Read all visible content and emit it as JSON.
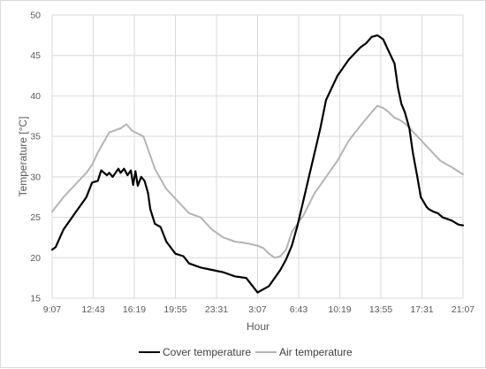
{
  "chart_data": {
    "type": "line",
    "xlabel": "Hour",
    "ylabel": "Temperature [°C]",
    "ylim": [
      15,
      50
    ],
    "yticks": [
      15,
      20,
      25,
      30,
      35,
      40,
      45,
      50
    ],
    "xlim": [
      0,
      36
    ],
    "x_tick_labels": [
      "9:07",
      "12:43",
      "16:19",
      "19:55",
      "23:31",
      "3:07",
      "6:43",
      "10:19",
      "13:55",
      "17:31",
      "21:07"
    ],
    "x_unit": "hours elapsed from 9:07",
    "grid": "vertical and horizontal",
    "legend_position": "bottom",
    "series": [
      {
        "name": "Cover temperature",
        "color": "#000000",
        "x": [
          0,
          0.3,
          1,
          2,
          3,
          3.5,
          4,
          4.3,
          4.8,
          5,
          5.3,
          5.8,
          6,
          6.3,
          6.6,
          6.9,
          7.1,
          7.3,
          7.5,
          7.8,
          8.1,
          8.4,
          8.6,
          9,
          9.5,
          10,
          10.8,
          11.5,
          12,
          13,
          14,
          15,
          16,
          17,
          18,
          19,
          19.5,
          20,
          20.5,
          21,
          21.5,
          22,
          22.5,
          23,
          23.5,
          24,
          25,
          26,
          27,
          27.5,
          28,
          28.5,
          29,
          29.5,
          30,
          30.3,
          30.6,
          30.9,
          31.3,
          31.6,
          32,
          32.3,
          32.8,
          33,
          33.4,
          33.8,
          34.2,
          35,
          35.6,
          36
        ],
        "y": [
          21,
          21.3,
          23.5,
          25.5,
          27.5,
          29.3,
          29.5,
          30.8,
          30.2,
          30.5,
          30,
          31,
          30.5,
          31,
          30.2,
          30.8,
          29,
          30.7,
          28.9,
          30,
          29.5,
          28,
          26,
          24.2,
          23.8,
          22,
          20.5,
          20.2,
          19.3,
          18.8,
          18.5,
          18.2,
          17.7,
          17.5,
          15.7,
          16.5,
          17.5,
          18.5,
          19.8,
          21.5,
          24,
          27,
          30,
          33,
          36,
          39.5,
          42.5,
          44.5,
          46,
          46.5,
          47.3,
          47.5,
          47,
          45.5,
          44,
          41,
          39,
          38,
          36,
          33,
          30,
          27.5,
          26.3,
          26,
          25.7,
          25.5,
          25,
          24.6,
          24.1,
          24
        ]
      },
      {
        "name": "Air temperature",
        "color": "#b4b4b4",
        "x": [
          0,
          1,
          2,
          3,
          3.5,
          4,
          5,
          6,
          6.5,
          7,
          8,
          9,
          10,
          11,
          12,
          13,
          14,
          15,
          16,
          17,
          18,
          18.5,
          19,
          19.5,
          20,
          20.5,
          21,
          22,
          23,
          24,
          25,
          26,
          27,
          28,
          28.5,
          29,
          29.5,
          30,
          30.5,
          31,
          32,
          33,
          34,
          35,
          36
        ],
        "y": [
          25.7,
          27.5,
          29,
          30.5,
          31.5,
          33,
          35.5,
          36,
          36.5,
          35.7,
          35,
          31,
          28.5,
          27,
          25.5,
          25,
          23.5,
          22.5,
          22,
          21.8,
          21.5,
          21.2,
          20.5,
          20,
          20.2,
          21,
          23.2,
          25.2,
          28,
          30,
          32,
          34.5,
          36.3,
          38,
          38.8,
          38.5,
          38,
          37.3,
          37,
          36.5,
          35,
          33.5,
          32,
          31.2,
          30.3
        ]
      }
    ]
  }
}
